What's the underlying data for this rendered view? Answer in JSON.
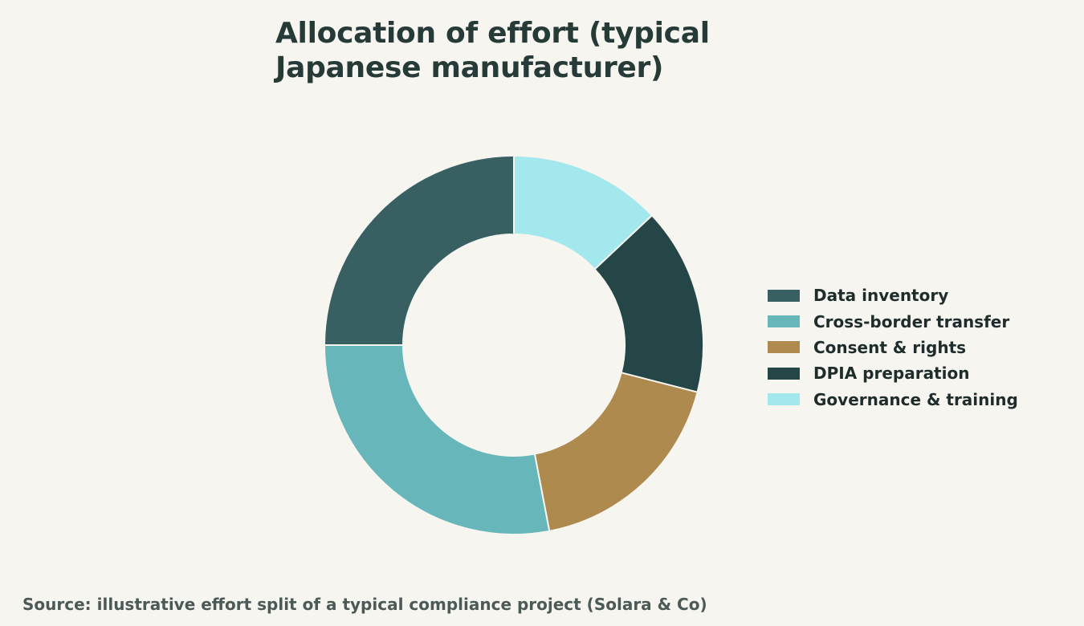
{
  "chart_data": {
    "type": "pie",
    "donut": true,
    "title": "Allocation of effort (typical Japanese manufacturer)",
    "categories": [
      "Data inventory",
      "Cross-border transfer",
      "Consent & rights",
      "DPIA preparation",
      "Governance & training"
    ],
    "values": [
      25,
      28,
      18,
      16,
      13
    ],
    "slice_order": [
      "Governance & training",
      "DPIA preparation",
      "Consent & rights",
      "Cross-border transfer",
      "Data inventory"
    ],
    "colors": [
      "#386062",
      "#67b6ba",
      "#ae8a4f",
      "#244646",
      "#a2e8ed"
    ],
    "legend_position": "right",
    "source": "Source: illustrative effort split of a typical compliance project (Solara & Co)"
  }
}
